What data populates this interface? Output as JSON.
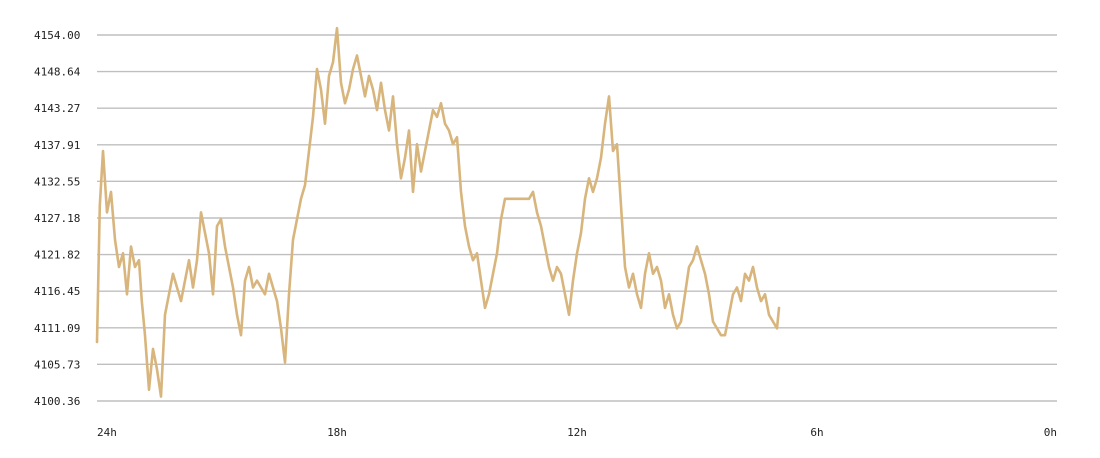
{
  "chart_data": {
    "type": "line",
    "title": "",
    "xlabel": "",
    "ylabel": "",
    "grid": true,
    "line_color": "#d8b57c",
    "y_ticks": [
      "4154.00",
      "4148.64",
      "4143.27",
      "4137.91",
      "4132.55",
      "4127.18",
      "4121.82",
      "4116.45",
      "4111.09",
      "4105.73",
      "4100.36"
    ],
    "ylim": [
      4100.36,
      4154.0
    ],
    "x_ticks": [
      {
        "label": "24h",
        "hours_ago": 24
      },
      {
        "label": "18h",
        "hours_ago": 18
      },
      {
        "label": "12h",
        "hours_ago": 12
      },
      {
        "label": "6h",
        "hours_ago": 6
      },
      {
        "label": "0h",
        "hours_ago": 0
      }
    ],
    "xlim_hours_ago": [
      24,
      0
    ],
    "series": [
      {
        "points": [
          [
            24.0,
            4109
          ],
          [
            23.93,
            4129
          ],
          [
            23.85,
            4137
          ],
          [
            23.75,
            4128
          ],
          [
            23.65,
            4131
          ],
          [
            23.55,
            4124
          ],
          [
            23.45,
            4120
          ],
          [
            23.35,
            4122
          ],
          [
            23.25,
            4116
          ],
          [
            23.15,
            4123
          ],
          [
            23.05,
            4120
          ],
          [
            22.95,
            4121
          ],
          [
            22.88,
            4115
          ],
          [
            22.8,
            4110
          ],
          [
            22.7,
            4102
          ],
          [
            22.6,
            4108
          ],
          [
            22.5,
            4105
          ],
          [
            22.4,
            4101
          ],
          [
            22.3,
            4113
          ],
          [
            22.2,
            4116
          ],
          [
            22.1,
            4119
          ],
          [
            22.0,
            4117
          ],
          [
            21.9,
            4115
          ],
          [
            21.8,
            4118
          ],
          [
            21.7,
            4121
          ],
          [
            21.6,
            4117
          ],
          [
            21.5,
            4121
          ],
          [
            21.4,
            4128
          ],
          [
            21.3,
            4125
          ],
          [
            21.2,
            4122
          ],
          [
            21.1,
            4116
          ],
          [
            21.0,
            4126
          ],
          [
            20.9,
            4127
          ],
          [
            20.8,
            4123
          ],
          [
            20.7,
            4120
          ],
          [
            20.6,
            4117
          ],
          [
            20.5,
            4113
          ],
          [
            20.4,
            4110
          ],
          [
            20.3,
            4118
          ],
          [
            20.2,
            4120
          ],
          [
            20.1,
            4117
          ],
          [
            20.0,
            4118
          ],
          [
            19.9,
            4117
          ],
          [
            19.8,
            4116
          ],
          [
            19.7,
            4119
          ],
          [
            19.6,
            4117
          ],
          [
            19.5,
            4115
          ],
          [
            19.4,
            4111
          ],
          [
            19.3,
            4106
          ],
          [
            19.2,
            4116
          ],
          [
            19.1,
            4124
          ],
          [
            19.0,
            4127
          ],
          [
            18.9,
            4130
          ],
          [
            18.8,
            4132
          ],
          [
            18.7,
            4137
          ],
          [
            18.6,
            4142
          ],
          [
            18.5,
            4149
          ],
          [
            18.4,
            4146
          ],
          [
            18.3,
            4141
          ],
          [
            18.2,
            4148
          ],
          [
            18.1,
            4150
          ],
          [
            18.0,
            4155
          ],
          [
            17.9,
            4147
          ],
          [
            17.8,
            4144
          ],
          [
            17.7,
            4146
          ],
          [
            17.6,
            4149
          ],
          [
            17.5,
            4151
          ],
          [
            17.4,
            4148
          ],
          [
            17.3,
            4145
          ],
          [
            17.2,
            4148
          ],
          [
            17.1,
            4146
          ],
          [
            17.0,
            4143
          ],
          [
            16.9,
            4147
          ],
          [
            16.8,
            4143
          ],
          [
            16.7,
            4140
          ],
          [
            16.6,
            4145
          ],
          [
            16.5,
            4138
          ],
          [
            16.4,
            4133
          ],
          [
            16.3,
            4136
          ],
          [
            16.2,
            4140
          ],
          [
            16.1,
            4131
          ],
          [
            16.0,
            4138
          ],
          [
            15.9,
            4134
          ],
          [
            15.8,
            4137
          ],
          [
            15.7,
            4140
          ],
          [
            15.6,
            4143
          ],
          [
            15.5,
            4142
          ],
          [
            15.4,
            4144
          ],
          [
            15.3,
            4141
          ],
          [
            15.2,
            4140
          ],
          [
            15.1,
            4138
          ],
          [
            15.0,
            4139
          ],
          [
            14.9,
            4131
          ],
          [
            14.8,
            4126
          ],
          [
            14.7,
            4123
          ],
          [
            14.6,
            4121
          ],
          [
            14.5,
            4122
          ],
          [
            14.4,
            4118
          ],
          [
            14.3,
            4114
          ],
          [
            14.2,
            4116
          ],
          [
            14.1,
            4119
          ],
          [
            14.0,
            4122
          ],
          [
            13.9,
            4127
          ],
          [
            13.8,
            4130
          ],
          [
            13.6,
            4130
          ],
          [
            13.4,
            4130
          ],
          [
            13.2,
            4130
          ],
          [
            13.1,
            4131
          ],
          [
            13.0,
            4128
          ],
          [
            12.9,
            4126
          ],
          [
            12.8,
            4123
          ],
          [
            12.7,
            4120
          ],
          [
            12.6,
            4118
          ],
          [
            12.5,
            4120
          ],
          [
            12.4,
            4119
          ],
          [
            12.3,
            4116
          ],
          [
            12.2,
            4113
          ],
          [
            12.1,
            4118
          ],
          [
            12.0,
            4122
          ],
          [
            11.9,
            4125
          ],
          [
            11.8,
            4130
          ],
          [
            11.7,
            4133
          ],
          [
            11.6,
            4131
          ],
          [
            11.5,
            4133
          ],
          [
            11.4,
            4136
          ],
          [
            11.3,
            4141
          ],
          [
            11.2,
            4145
          ],
          [
            11.1,
            4137
          ],
          [
            11.0,
            4138
          ],
          [
            10.9,
            4129
          ],
          [
            10.8,
            4120
          ],
          [
            10.7,
            4117
          ],
          [
            10.6,
            4119
          ],
          [
            10.5,
            4116
          ],
          [
            10.4,
            4114
          ],
          [
            10.3,
            4119
          ],
          [
            10.2,
            4122
          ],
          [
            10.1,
            4119
          ],
          [
            10.0,
            4120
          ],
          [
            9.9,
            4118
          ],
          [
            9.8,
            4114
          ],
          [
            9.7,
            4116
          ],
          [
            9.6,
            4113
          ],
          [
            9.5,
            4111
          ],
          [
            9.4,
            4112
          ],
          [
            9.3,
            4116
          ],
          [
            9.2,
            4120
          ],
          [
            9.1,
            4121
          ],
          [
            9.0,
            4123
          ],
          [
            8.9,
            4121
          ],
          [
            8.8,
            4119
          ],
          [
            8.7,
            4116
          ],
          [
            8.6,
            4112
          ],
          [
            8.5,
            4111
          ],
          [
            8.4,
            4110
          ],
          [
            8.3,
            4110
          ],
          [
            8.2,
            4113
          ],
          [
            8.1,
            4116
          ],
          [
            8.0,
            4117
          ],
          [
            7.9,
            4115
          ],
          [
            7.8,
            4119
          ],
          [
            7.7,
            4118
          ],
          [
            7.6,
            4120
          ],
          [
            7.5,
            4117
          ],
          [
            7.4,
            4115
          ],
          [
            7.3,
            4116
          ],
          [
            7.2,
            4113
          ],
          [
            7.1,
            4112
          ],
          [
            7.0,
            4111
          ],
          [
            6.95,
            4114
          ]
        ]
      }
    ]
  }
}
